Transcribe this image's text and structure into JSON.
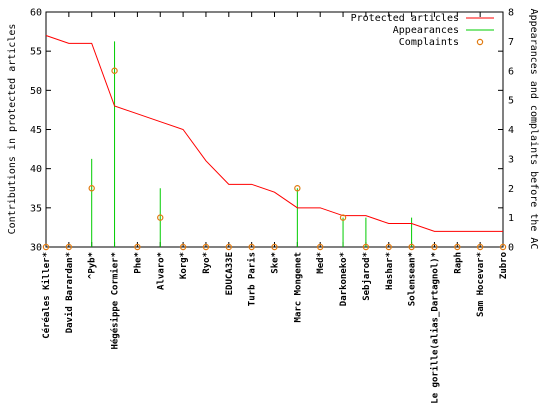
{
  "chart_data": {
    "type": "line",
    "categories": [
      "Céréales Killer*",
      "David Barardan*",
      "^Pyb*",
      "Hégésippe Cormier*",
      "Phe*",
      "Alvaro*",
      "Korg*",
      "Ryo*",
      "EDUCA33E",
      "Turb Paris",
      "Ske*",
      "Marc Mongenet",
      "Med*",
      "Darkoneko*",
      "Sebjarod*",
      "Hashar*",
      "Solensean*",
      "Le gorille(alias_Dartagnol)*",
      "Raph",
      "Sam Hocevar*",
      "Zubro"
    ],
    "xlabel": "",
    "ylabel": "Contributions in protected articles",
    "y2label": "Appearances and complaints before the AC",
    "ylim": [
      30,
      60
    ],
    "y2lim": [
      0,
      8
    ],
    "yticks": [
      "30",
      "35",
      "40",
      "45",
      "50",
      "55",
      "60"
    ],
    "y2ticks": [
      "0",
      "1",
      "2",
      "3",
      "4",
      "5",
      "6",
      "7",
      "8"
    ],
    "legend_position": "top-right",
    "grid": false,
    "series": [
      {
        "name": "Protected articles",
        "axis": "left",
        "style": "line",
        "color": "#ff0000",
        "values": [
          57,
          56,
          56,
          48,
          47,
          46,
          45,
          41,
          38,
          38,
          37,
          35,
          35,
          34,
          34,
          33,
          33,
          32,
          32,
          32,
          32
        ]
      },
      {
        "name": "Appearances",
        "axis": "right",
        "style": "impulses",
        "color": "#00cc00",
        "values": [
          0,
          0,
          3,
          7,
          0,
          2,
          0,
          0,
          0,
          0,
          0,
          2,
          0,
          1,
          1,
          0,
          1,
          0,
          0,
          0,
          0
        ]
      },
      {
        "name": "Complaints",
        "axis": "right",
        "style": "points",
        "color": "#e07a10",
        "values": [
          0,
          0,
          2,
          6,
          0,
          1,
          0,
          0,
          0,
          0,
          0,
          2,
          0,
          1,
          0,
          0,
          0,
          0,
          0,
          0,
          0
        ]
      }
    ]
  }
}
